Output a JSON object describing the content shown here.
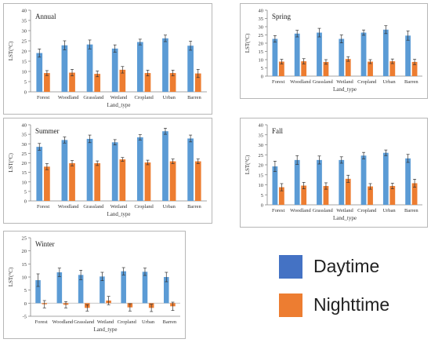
{
  "colors": {
    "day": "#5b9bd5",
    "night": "#ed7d31",
    "error": "#333333",
    "axis": "#888888",
    "grid": "#e6e6e6"
  },
  "legend": {
    "day_label": "Daytime",
    "night_label": "Nighttime"
  },
  "chart_data": [
    {
      "type": "bar",
      "title": "Annual",
      "xlabel": "Land_type",
      "ylabel": "LST(°C)",
      "ylim": [
        0,
        40
      ],
      "yticks": [
        0,
        5,
        10,
        15,
        20,
        25,
        30,
        35,
        40
      ],
      "categories": [
        "Forest",
        "Woodland",
        "Grassland",
        "Wetland",
        "Cropland",
        "Urban",
        "Barren"
      ],
      "series": [
        {
          "values": [
            19.0,
            22.8,
            23.2,
            21.2,
            24.4,
            26.2,
            22.6
          ],
          "errors": [
            2.0,
            2.2,
            2.2,
            1.8,
            1.4,
            1.6,
            2.2
          ]
        },
        {
          "values": [
            9.2,
            9.4,
            8.8,
            10.8,
            9.2,
            9.2,
            9.0
          ],
          "errors": [
            1.2,
            1.6,
            1.4,
            1.6,
            1.4,
            1.4,
            2.0
          ]
        }
      ]
    },
    {
      "type": "bar",
      "title": "Spring",
      "xlabel": "Land_type",
      "ylabel": "LST(°C)",
      "ylim": [
        0,
        40
      ],
      "yticks": [
        0,
        5,
        10,
        15,
        20,
        25,
        30,
        35,
        40
      ],
      "categories": [
        "Forest",
        "Woodland",
        "Grassland",
        "Wetland",
        "Cropland",
        "Urban",
        "Barren"
      ],
      "series": [
        {
          "values": [
            22.6,
            25.8,
            26.4,
            22.6,
            26.4,
            28.2,
            24.6
          ],
          "errors": [
            2.0,
            2.0,
            2.6,
            2.4,
            1.6,
            2.4,
            2.8
          ]
        },
        {
          "values": [
            8.8,
            9.0,
            8.6,
            10.4,
            8.8,
            9.0,
            8.6
          ],
          "errors": [
            1.4,
            1.6,
            1.4,
            1.4,
            1.2,
            1.4,
            1.6
          ]
        }
      ]
    },
    {
      "type": "bar",
      "title": "Summer",
      "xlabel": "Land_type",
      "ylabel": "LST(°C)",
      "ylim": [
        0,
        40
      ],
      "yticks": [
        0,
        5,
        10,
        15,
        20,
        25,
        30,
        35,
        40
      ],
      "categories": [
        "Forest",
        "Woodland",
        "Grassland",
        "Wetland",
        "Cropland",
        "Urban",
        "Barren"
      ],
      "series": [
        {
          "values": [
            28.4,
            32.0,
            32.6,
            30.8,
            33.4,
            36.6,
            32.8
          ],
          "errors": [
            1.8,
            1.6,
            2.0,
            1.4,
            1.4,
            1.6,
            1.8
          ]
        },
        {
          "values": [
            18.0,
            19.8,
            19.8,
            21.8,
            20.2,
            20.8,
            20.8
          ],
          "errors": [
            1.6,
            1.4,
            1.2,
            1.0,
            1.2,
            1.2,
            1.2
          ]
        }
      ]
    },
    {
      "type": "bar",
      "title": "Fall",
      "xlabel": "Land_type",
      "ylabel": "LST(°C)",
      "ylim": [
        0,
        40
      ],
      "yticks": [
        0,
        5,
        10,
        15,
        20,
        25,
        30,
        35,
        40
      ],
      "categories": [
        "Forest",
        "Woodland",
        "Grassland",
        "Wetland",
        "Cropland",
        "Urban",
        "Barren"
      ],
      "series": [
        {
          "values": [
            19.2,
            22.4,
            22.4,
            22.4,
            24.6,
            26.0,
            23.2
          ],
          "errors": [
            2.6,
            2.2,
            2.0,
            1.6,
            1.6,
            1.4,
            2.0
          ]
        },
        {
          "values": [
            8.8,
            9.6,
            9.4,
            13.0,
            9.2,
            9.4,
            10.8
          ],
          "errors": [
            1.8,
            1.6,
            1.6,
            1.8,
            1.4,
            1.4,
            2.0
          ]
        }
      ]
    },
    {
      "type": "bar",
      "title": "Winter",
      "xlabel": "Land_type",
      "ylabel": "LST(°C)",
      "ylim": [
        -5,
        25
      ],
      "yticks": [
        -5,
        0,
        5,
        10,
        15,
        20,
        25
      ],
      "categories": [
        "Forest",
        "Woodland",
        "Grassland",
        "Wetland",
        "Cropland",
        "Urban",
        "Barren"
      ],
      "series": [
        {
          "values": [
            8.8,
            11.8,
            10.8,
            10.2,
            12.2,
            12.0,
            10.0
          ],
          "errors": [
            2.4,
            1.6,
            1.8,
            1.6,
            1.4,
            1.4,
            1.8
          ]
        },
        {
          "values": [
            -0.4,
            -0.6,
            -1.8,
            1.0,
            -1.6,
            -1.8,
            -1.2
          ],
          "errors": [
            1.4,
            1.2,
            1.2,
            1.6,
            1.4,
            1.4,
            1.6
          ]
        }
      ]
    }
  ]
}
